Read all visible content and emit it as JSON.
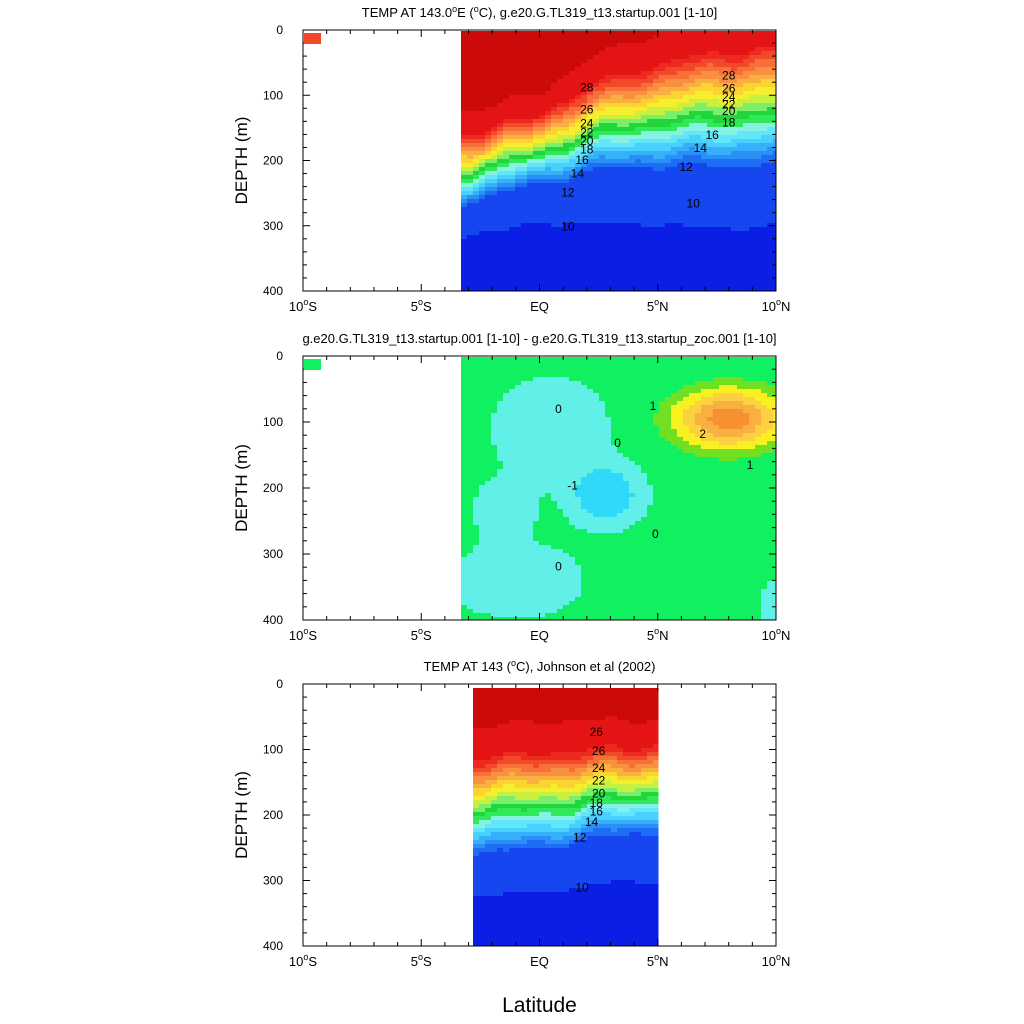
{
  "figure": {
    "xlabel": "Latitude",
    "ylabel": "DEPTH (m)"
  },
  "colors": {
    "temp_palette": [
      "#0a1ee6",
      "#1546f0",
      "#1e6ef5",
      "#2a90f8",
      "#36b0fa",
      "#4ad0fc",
      "#62e6fa",
      "#86f2e4",
      "#30e85a",
      "#20d63a",
      "#7af06a",
      "#c8f040",
      "#f4f030",
      "#fcd430",
      "#fab040",
      "#f89040",
      "#f67038",
      "#f24a28",
      "#ec2a20",
      "#e41414",
      "#cc0a0a"
    ],
    "diff_palette": {
      "neg2": "#20a0f0",
      "neg1": "#30d8fa",
      "neg0": "#60f0e8",
      "pos0": "#10f060",
      "pos1": "#70e020",
      "pos2": "#f8f020",
      "pos3": "#fcd040",
      "pos4": "#f8b040",
      "pos5": "#f69030"
    }
  },
  "chart_data": [
    {
      "type": "heatmap",
      "title": "TEMP AT 143.0°E (°C), g.e20.G.TL319_t13.startup.001 [1-10]",
      "title_parts": {
        "pre": "TEMP AT 143.0",
        "deg1": "o",
        "mid": "E (",
        "deg2": "o",
        "post": "C), g.e20.G.TL319_t13.startup.001 [1-10]"
      },
      "xlabel": "",
      "ylabel": "DEPTH (m)",
      "xlim": [
        -10,
        10
      ],
      "ylim": [
        0,
        400
      ],
      "data_xrange": [
        -3.3,
        10
      ],
      "thermocline": {
        "x": [
          -3.3,
          0,
          2,
          4,
          6,
          8,
          10
        ],
        "d20": [
          210,
          180,
          150,
          132,
          122,
          115,
          110
        ],
        "slope": [
          1.25,
          1.25,
          1.0,
          0.9,
          0.8,
          0.75,
          0.75
        ]
      },
      "contour_labels": [
        {
          "text": "28",
          "x": 2.0,
          "y": 88
        },
        {
          "text": "26",
          "x": 2.0,
          "y": 122
        },
        {
          "text": "24",
          "x": 2.0,
          "y": 143
        },
        {
          "text": "22",
          "x": 2.0,
          "y": 157
        },
        {
          "text": "20",
          "x": 2.0,
          "y": 170
        },
        {
          "text": "18",
          "x": 2.0,
          "y": 183
        },
        {
          "text": "16",
          "x": 1.8,
          "y": 199
        },
        {
          "text": "14",
          "x": 1.6,
          "y": 220
        },
        {
          "text": "12",
          "x": 1.2,
          "y": 249
        },
        {
          "text": "10",
          "x": 1.2,
          "y": 301
        },
        {
          "text": "28",
          "x": 8.0,
          "y": 70
        },
        {
          "text": "26",
          "x": 8.0,
          "y": 90
        },
        {
          "text": "24",
          "x": 8.0,
          "y": 103
        },
        {
          "text": "22",
          "x": 8.0,
          "y": 114
        },
        {
          "text": "20",
          "x": 8.0,
          "y": 124
        },
        {
          "text": "18",
          "x": 8.0,
          "y": 142
        },
        {
          "text": "16",
          "x": 7.3,
          "y": 161
        },
        {
          "text": "14",
          "x": 6.8,
          "y": 181
        },
        {
          "text": "12",
          "x": 6.2,
          "y": 210
        },
        {
          "text": "10",
          "x": 6.5,
          "y": 266
        }
      ],
      "legend_swatch": "#f24a28"
    },
    {
      "type": "heatmap",
      "title": "g.e20.G.TL319_t13.startup.001 [1-10] - g.e20.G.TL319_t13.startup_zoc.001 [1-10]",
      "xlabel": "",
      "ylabel": "DEPTH (m)",
      "xlim": [
        -10,
        10
      ],
      "ylim": [
        0,
        400
      ],
      "data_xrange": [
        -3.3,
        10
      ],
      "contour_labels": [
        {
          "text": "0",
          "x": 0.8,
          "y": 80
        },
        {
          "text": "1",
          "x": 4.8,
          "y": 76
        },
        {
          "text": "2",
          "x": 6.9,
          "y": 118
        },
        {
          "text": "0",
          "x": 3.3,
          "y": 132
        },
        {
          "text": "1",
          "x": 8.9,
          "y": 165
        },
        {
          "text": "-1",
          "x": 1.4,
          "y": 196
        },
        {
          "text": "0",
          "x": 4.9,
          "y": 270
        },
        {
          "text": "0",
          "x": 0.8,
          "y": 319
        }
      ],
      "legend_swatch": "#10f060"
    },
    {
      "type": "heatmap",
      "title": "TEMP AT 143 (°C), Johnson et al (2002)",
      "title_parts": {
        "pre": "TEMP AT 143 (",
        "deg": "o",
        "post": "C), Johnson et al (2002)"
      },
      "xlabel": "Latitude",
      "ylabel": "DEPTH (m)",
      "xlim": [
        -10,
        10
      ],
      "ylim": [
        0,
        400
      ],
      "data_xrange": [
        -2.8,
        5
      ],
      "thermocline": {
        "x": [
          -2.8,
          0,
          2,
          3,
          4,
          5
        ],
        "d20": [
          180,
          175,
          165,
          162,
          160,
          155
        ],
        "slope": [
          0.9,
          0.9,
          0.95,
          1.0,
          1.0,
          1.0
        ]
      },
      "contour_labels": [
        {
          "text": "26",
          "x": 2.4,
          "y": 73
        },
        {
          "text": "26",
          "x": 2.5,
          "y": 102
        },
        {
          "text": "24",
          "x": 2.5,
          "y": 128
        },
        {
          "text": "22",
          "x": 2.5,
          "y": 147
        },
        {
          "text": "20",
          "x": 2.5,
          "y": 167
        },
        {
          "text": "18",
          "x": 2.4,
          "y": 182
        },
        {
          "text": "16",
          "x": 2.4,
          "y": 195
        },
        {
          "text": "14",
          "x": 2.2,
          "y": 211
        },
        {
          "text": "12",
          "x": 1.7,
          "y": 234
        },
        {
          "text": "10",
          "x": 1.8,
          "y": 311
        }
      ]
    }
  ],
  "axes": {
    "x_ticks": [
      {
        "value": -10,
        "num": "10",
        "deg": "o",
        "hem": "S"
      },
      {
        "value": -5,
        "num": "5",
        "deg": "o",
        "hem": "S"
      },
      {
        "value": 0,
        "num": "EQ",
        "deg": "",
        "hem": ""
      },
      {
        "value": 5,
        "num": "5",
        "deg": "o",
        "hem": "N"
      },
      {
        "value": 10,
        "num": "10",
        "deg": "o",
        "hem": "N"
      }
    ],
    "y_ticks": [
      0,
      100,
      200,
      300,
      400
    ]
  }
}
